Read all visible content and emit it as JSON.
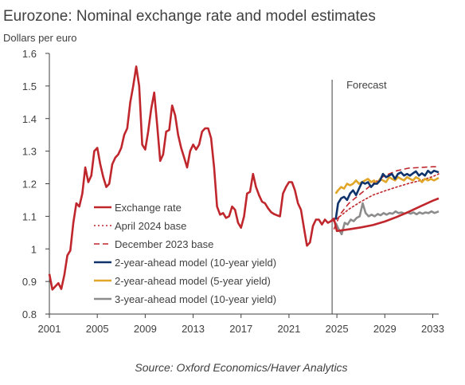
{
  "chart_data": {
    "type": "line",
    "title": "Eurozone: Nominal exchange rate and model estimates",
    "ylabel": "Dollars per euro",
    "xlabel": "",
    "source": "Source: Oxford Economics/Haver Analytics",
    "forecast_label": "Forecast",
    "forecast_start": 2024.6,
    "xlim": [
      2001,
      2033.5
    ],
    "ylim": [
      0.8,
      1.6
    ],
    "x_ticks": [
      "2001",
      "2005",
      "2009",
      "2013",
      "2017",
      "2021",
      "2025",
      "2029",
      "2033"
    ],
    "y_ticks": [
      "0.8",
      "0.9",
      "1",
      "1.1",
      "1.2",
      "1.3",
      "1.4",
      "1.5",
      "1.6"
    ],
    "grid": false,
    "legend_position": "bottom-left",
    "series": [
      {
        "name": "Exchange rate",
        "color": "#c0272d",
        "style": "solid",
        "points": [
          [
            2001.0,
            0.923
          ],
          [
            2001.25,
            0.875
          ],
          [
            2001.5,
            0.885
          ],
          [
            2001.75,
            0.895
          ],
          [
            2002.0,
            0.877
          ],
          [
            2002.25,
            0.92
          ],
          [
            2002.5,
            0.98
          ],
          [
            2002.75,
            0.995
          ],
          [
            2003.0,
            1.08
          ],
          [
            2003.25,
            1.14
          ],
          [
            2003.5,
            1.13
          ],
          [
            2003.75,
            1.17
          ],
          [
            2004.0,
            1.25
          ],
          [
            2004.25,
            1.205
          ],
          [
            2004.5,
            1.225
          ],
          [
            2004.75,
            1.3
          ],
          [
            2005.0,
            1.31
          ],
          [
            2005.25,
            1.26
          ],
          [
            2005.5,
            1.22
          ],
          [
            2005.75,
            1.19
          ],
          [
            2006.0,
            1.2
          ],
          [
            2006.25,
            1.26
          ],
          [
            2006.5,
            1.28
          ],
          [
            2006.75,
            1.29
          ],
          [
            2007.0,
            1.31
          ],
          [
            2007.25,
            1.35
          ],
          [
            2007.5,
            1.37
          ],
          [
            2007.75,
            1.45
          ],
          [
            2008.0,
            1.5
          ],
          [
            2008.25,
            1.56
          ],
          [
            2008.5,
            1.5
          ],
          [
            2008.75,
            1.32
          ],
          [
            2009.0,
            1.305
          ],
          [
            2009.25,
            1.36
          ],
          [
            2009.5,
            1.43
          ],
          [
            2009.75,
            1.48
          ],
          [
            2010.0,
            1.38
          ],
          [
            2010.25,
            1.27
          ],
          [
            2010.5,
            1.29
          ],
          [
            2010.75,
            1.36
          ],
          [
            2011.0,
            1.365
          ],
          [
            2011.25,
            1.44
          ],
          [
            2011.5,
            1.41
          ],
          [
            2011.75,
            1.35
          ],
          [
            2012.0,
            1.31
          ],
          [
            2012.25,
            1.28
          ],
          [
            2012.5,
            1.25
          ],
          [
            2012.75,
            1.3
          ],
          [
            2013.0,
            1.32
          ],
          [
            2013.25,
            1.305
          ],
          [
            2013.5,
            1.32
          ],
          [
            2013.75,
            1.36
          ],
          [
            2014.0,
            1.37
          ],
          [
            2014.25,
            1.37
          ],
          [
            2014.5,
            1.34
          ],
          [
            2014.75,
            1.25
          ],
          [
            2015.0,
            1.13
          ],
          [
            2015.25,
            1.105
          ],
          [
            2015.5,
            1.11
          ],
          [
            2015.75,
            1.095
          ],
          [
            2016.0,
            1.1
          ],
          [
            2016.25,
            1.13
          ],
          [
            2016.5,
            1.12
          ],
          [
            2016.75,
            1.08
          ],
          [
            2017.0,
            1.065
          ],
          [
            2017.25,
            1.1
          ],
          [
            2017.5,
            1.17
          ],
          [
            2017.75,
            1.175
          ],
          [
            2018.0,
            1.23
          ],
          [
            2018.25,
            1.19
          ],
          [
            2018.5,
            1.165
          ],
          [
            2018.75,
            1.145
          ],
          [
            2019.0,
            1.14
          ],
          [
            2019.25,
            1.125
          ],
          [
            2019.5,
            1.113
          ],
          [
            2019.75,
            1.107
          ],
          [
            2020.0,
            1.103
          ],
          [
            2020.25,
            1.1
          ],
          [
            2020.5,
            1.17
          ],
          [
            2020.75,
            1.19
          ],
          [
            2021.0,
            1.205
          ],
          [
            2021.25,
            1.205
          ],
          [
            2021.5,
            1.18
          ],
          [
            2021.75,
            1.14
          ],
          [
            2022.0,
            1.12
          ],
          [
            2022.25,
            1.065
          ],
          [
            2022.5,
            1.01
          ],
          [
            2022.75,
            1.02
          ],
          [
            2023.0,
            1.07
          ],
          [
            2023.25,
            1.09
          ],
          [
            2023.5,
            1.09
          ],
          [
            2023.75,
            1.075
          ],
          [
            2024.0,
            1.09
          ],
          [
            2024.25,
            1.08
          ],
          [
            2024.5,
            1.085
          ],
          [
            2024.75,
            1.093
          ],
          [
            2025.0,
            1.055
          ],
          [
            2026.0,
            1.06
          ],
          [
            2027.0,
            1.066
          ],
          [
            2028.0,
            1.073
          ],
          [
            2029.0,
            1.084
          ],
          [
            2030.0,
            1.098
          ],
          [
            2031.0,
            1.114
          ],
          [
            2032.0,
            1.131
          ],
          [
            2033.0,
            1.148
          ],
          [
            2033.5,
            1.155
          ]
        ]
      },
      {
        "name": "April 2024 base",
        "color": "#c0272d",
        "style": "dotted",
        "points": [
          [
            2024.7,
            1.085
          ],
          [
            2025.25,
            1.1
          ],
          [
            2026.0,
            1.122
          ],
          [
            2027.0,
            1.145
          ],
          [
            2028.0,
            1.165
          ],
          [
            2029.0,
            1.178
          ],
          [
            2030.0,
            1.19
          ],
          [
            2031.0,
            1.201
          ],
          [
            2032.0,
            1.21
          ],
          [
            2033.0,
            1.222
          ],
          [
            2033.5,
            1.23
          ]
        ]
      },
      {
        "name": "December 2023 base",
        "color": "#c0272d",
        "style": "dashed",
        "points": [
          [
            2024.75,
            1.06
          ],
          [
            2025.25,
            1.105
          ],
          [
            2026.0,
            1.14
          ],
          [
            2027.0,
            1.17
          ],
          [
            2028.0,
            1.2
          ],
          [
            2029.0,
            1.225
          ],
          [
            2030.0,
            1.24
          ],
          [
            2031.0,
            1.248
          ],
          [
            2032.0,
            1.25
          ],
          [
            2033.0,
            1.252
          ],
          [
            2033.5,
            1.252
          ]
        ]
      },
      {
        "name": "2-year-ahead model (10-year yield)",
        "color": "#10336b",
        "style": "solid",
        "points": [
          [
            2024.9,
            1.09
          ],
          [
            2025.1,
            1.14
          ],
          [
            2025.35,
            1.155
          ],
          [
            2025.6,
            1.16
          ],
          [
            2025.85,
            1.15
          ],
          [
            2026.1,
            1.17
          ],
          [
            2026.35,
            1.18
          ],
          [
            2026.6,
            1.165
          ],
          [
            2026.85,
            1.185
          ],
          [
            2027.1,
            1.205
          ],
          [
            2027.35,
            1.2
          ],
          [
            2027.6,
            1.205
          ],
          [
            2027.85,
            1.19
          ],
          [
            2028.1,
            1.2
          ],
          [
            2028.35,
            1.2
          ],
          [
            2028.6,
            1.21
          ],
          [
            2028.85,
            1.23
          ],
          [
            2029.1,
            1.22
          ],
          [
            2029.35,
            1.225
          ],
          [
            2029.6,
            1.23
          ],
          [
            2029.85,
            1.215
          ],
          [
            2030.1,
            1.23
          ],
          [
            2030.35,
            1.235
          ],
          [
            2030.6,
            1.225
          ],
          [
            2030.85,
            1.23
          ],
          [
            2031.1,
            1.225
          ],
          [
            2031.35,
            1.232
          ],
          [
            2031.6,
            1.238
          ],
          [
            2031.85,
            1.225
          ],
          [
            2032.1,
            1.232
          ],
          [
            2032.35,
            1.225
          ],
          [
            2032.6,
            1.24
          ],
          [
            2032.85,
            1.232
          ],
          [
            2033.1,
            1.24
          ],
          [
            2033.5,
            1.235
          ]
        ]
      },
      {
        "name": "2-year-ahead model (5-year yield)",
        "color": "#e1a628",
        "style": "solid",
        "points": [
          [
            2024.9,
            1.17
          ],
          [
            2025.1,
            1.18
          ],
          [
            2025.35,
            1.19
          ],
          [
            2025.6,
            1.185
          ],
          [
            2025.85,
            1.2
          ],
          [
            2026.1,
            1.195
          ],
          [
            2026.35,
            1.2
          ],
          [
            2026.6,
            1.21
          ],
          [
            2026.85,
            1.2
          ],
          [
            2027.1,
            1.205
          ],
          [
            2027.35,
            1.21
          ],
          [
            2027.6,
            1.215
          ],
          [
            2027.85,
            1.205
          ],
          [
            2028.1,
            1.21
          ],
          [
            2028.35,
            1.2
          ],
          [
            2028.6,
            1.215
          ],
          [
            2028.85,
            1.21
          ],
          [
            2029.1,
            1.205
          ],
          [
            2029.35,
            1.22
          ],
          [
            2029.6,
            1.215
          ],
          [
            2029.85,
            1.21
          ],
          [
            2030.1,
            1.22
          ],
          [
            2030.35,
            1.215
          ],
          [
            2030.6,
            1.21
          ],
          [
            2030.85,
            1.22
          ],
          [
            2031.1,
            1.215
          ],
          [
            2031.35,
            1.21
          ],
          [
            2031.6,
            1.22
          ],
          [
            2031.85,
            1.215
          ],
          [
            2032.1,
            1.205
          ],
          [
            2032.35,
            1.215
          ],
          [
            2032.6,
            1.21
          ],
          [
            2032.85,
            1.215
          ],
          [
            2033.1,
            1.21
          ],
          [
            2033.5,
            1.218
          ]
        ]
      },
      {
        "name": "3-year-ahead model (10-year yield)",
        "color": "#8c8c8c",
        "style": "solid",
        "points": [
          [
            2024.9,
            1.08
          ],
          [
            2025.15,
            1.06
          ],
          [
            2025.4,
            1.045
          ],
          [
            2025.65,
            1.08
          ],
          [
            2025.9,
            1.075
          ],
          [
            2026.15,
            1.09
          ],
          [
            2026.4,
            1.085
          ],
          [
            2026.65,
            1.095
          ],
          [
            2026.9,
            1.1
          ],
          [
            2027.15,
            1.14
          ],
          [
            2027.4,
            1.11
          ],
          [
            2027.65,
            1.1
          ],
          [
            2027.9,
            1.105
          ],
          [
            2028.15,
            1.1
          ],
          [
            2028.4,
            1.107
          ],
          [
            2028.65,
            1.103
          ],
          [
            2028.9,
            1.11
          ],
          [
            2029.15,
            1.105
          ],
          [
            2029.4,
            1.11
          ],
          [
            2029.65,
            1.108
          ],
          [
            2029.9,
            1.115
          ],
          [
            2030.15,
            1.11
          ],
          [
            2030.4,
            1.112
          ],
          [
            2030.65,
            1.108
          ],
          [
            2030.9,
            1.112
          ],
          [
            2031.15,
            1.108
          ],
          [
            2031.4,
            1.112
          ],
          [
            2031.65,
            1.106
          ],
          [
            2031.9,
            1.112
          ],
          [
            2032.15,
            1.108
          ],
          [
            2032.4,
            1.112
          ],
          [
            2032.65,
            1.11
          ],
          [
            2032.9,
            1.115
          ],
          [
            2033.15,
            1.11
          ],
          [
            2033.5,
            1.115
          ]
        ]
      }
    ]
  }
}
